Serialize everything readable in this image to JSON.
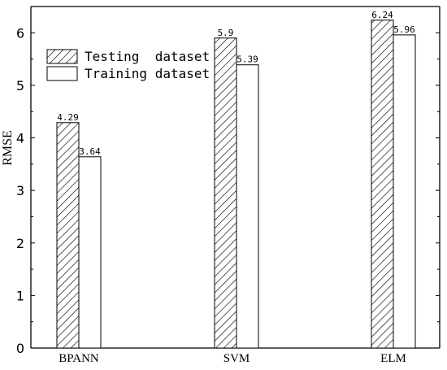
{
  "chart_data": {
    "type": "bar",
    "categories": [
      "BPANN",
      "SVM",
      "ELM"
    ],
    "series": [
      {
        "name": "Testing  dataset",
        "values": [
          4.29,
          5.9,
          6.24
        ],
        "value_labels": [
          "4.29",
          "5.9",
          "6.24"
        ],
        "fill": "hatched"
      },
      {
        "name": "Training dataset",
        "values": [
          3.64,
          5.39,
          5.96
        ],
        "value_labels": [
          "3.64",
          "5.39",
          "5.96"
        ],
        "fill": "#ffffff"
      }
    ],
    "title": "",
    "xlabel": "",
    "ylabel": "RMSE",
    "ylim": [
      0,
      6.5
    ],
    "yticks": [
      0,
      1,
      2,
      3,
      4,
      5,
      6
    ],
    "grid": false,
    "legend_position": "top-left"
  },
  "colors": {
    "stroke": "#000000",
    "background": "#ffffff"
  }
}
